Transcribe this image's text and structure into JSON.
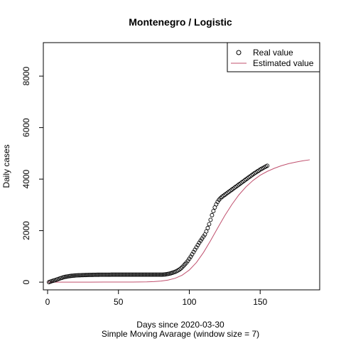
{
  "chart_data": {
    "type": "scatter",
    "title": "Montenegro / Logistic",
    "xlabel": "Days since 2020-03-30",
    "subtitle": "Simple Moving Avarage (window size = 7)",
    "ylabel": "Daily cases",
    "xlim": [
      -3,
      192
    ],
    "ylim": [
      -300,
      9300
    ],
    "x_ticks": [
      0,
      50,
      100,
      150
    ],
    "y_ticks": [
      0,
      2000,
      4000,
      6000,
      8000
    ],
    "grid": false,
    "legend_position": "top-right",
    "series": [
      {
        "name": "Real value",
        "kind": "points",
        "color": "#000000",
        "x": [
          1,
          2,
          3,
          4,
          5,
          6,
          7,
          8,
          9,
          10,
          11,
          12,
          13,
          14,
          15,
          16,
          17,
          18,
          19,
          20,
          21,
          22,
          23,
          24,
          25,
          26,
          27,
          28,
          29,
          30,
          31,
          32,
          33,
          34,
          35,
          36,
          37,
          38,
          39,
          40,
          41,
          42,
          43,
          44,
          45,
          46,
          47,
          48,
          49,
          50,
          51,
          52,
          53,
          54,
          55,
          56,
          57,
          58,
          59,
          60,
          61,
          62,
          63,
          64,
          65,
          66,
          67,
          68,
          69,
          70,
          71,
          72,
          73,
          74,
          75,
          76,
          77,
          78,
          79,
          80,
          81,
          82,
          83,
          84,
          85,
          86,
          87,
          88,
          89,
          90,
          91,
          92,
          93,
          94,
          95,
          96,
          97,
          98,
          99,
          100,
          101,
          102,
          103,
          104,
          105,
          106,
          107,
          108,
          109,
          110,
          111,
          112,
          113,
          114,
          115,
          116,
          117,
          118,
          119,
          120,
          121,
          122,
          123,
          124,
          125,
          126,
          127,
          128,
          129,
          130,
          131,
          132,
          133,
          134,
          135,
          136,
          137,
          138,
          139,
          140,
          141,
          142,
          143,
          144,
          145,
          146,
          147,
          148,
          149,
          150,
          151,
          152,
          153,
          154,
          155
        ],
        "y": [
          0,
          20,
          40,
          55,
          70,
          90,
          110,
          130,
          150,
          165,
          185,
          200,
          210,
          220,
          230,
          238,
          245,
          250,
          255,
          260,
          263,
          266,
          268,
          270,
          272,
          274,
          276,
          278,
          280,
          281,
          282,
          283,
          284,
          285,
          286,
          286,
          287,
          287,
          288,
          288,
          288,
          289,
          289,
          289,
          290,
          290,
          290,
          290,
          290,
          290,
          290,
          290,
          290,
          290,
          290,
          290,
          290,
          290,
          290,
          290,
          290,
          290,
          290,
          290,
          290,
          290,
          290,
          290,
          290,
          290,
          290,
          290,
          290,
          290,
          290,
          290,
          290,
          290,
          290,
          290,
          292,
          295,
          300,
          308,
          318,
          330,
          345,
          362,
          380,
          400,
          425,
          455,
          490,
          530,
          580,
          640,
          700,
          760,
          830,
          910,
          990,
          1080,
          1170,
          1260,
          1350,
          1440,
          1530,
          1610,
          1690,
          1770,
          1850,
          1970,
          2100,
          2250,
          2420,
          2600,
          2760,
          2900,
          3020,
          3120,
          3200,
          3260,
          3310,
          3350,
          3390,
          3430,
          3470,
          3510,
          3550,
          3590,
          3630,
          3670,
          3710,
          3750,
          3790,
          3830,
          3870,
          3910,
          3950,
          3990,
          4030,
          4070,
          4110,
          4150,
          4190,
          4230,
          4260,
          4300,
          4330,
          4370,
          4400,
          4430,
          4460,
          4490,
          4520
        ]
      },
      {
        "name": "Estimated value",
        "kind": "line",
        "color": "#c0506e",
        "x": [
          0,
          10,
          20,
          30,
          40,
          50,
          60,
          70,
          75,
          80,
          85,
          90,
          95,
          100,
          105,
          110,
          115,
          120,
          125,
          130,
          135,
          140,
          145,
          150,
          155,
          160,
          165,
          170,
          175,
          180,
          185
        ],
        "y": [
          0,
          0,
          0,
          1,
          2,
          3,
          5,
          10,
          20,
          40,
          80,
          150,
          270,
          470,
          760,
          1150,
          1610,
          2100,
          2580,
          3010,
          3390,
          3700,
          3950,
          4150,
          4300,
          4420,
          4520,
          4600,
          4660,
          4710,
          4750
        ]
      }
    ]
  }
}
